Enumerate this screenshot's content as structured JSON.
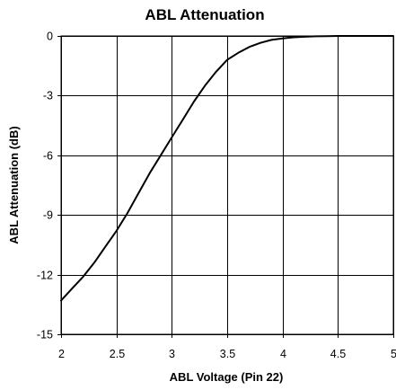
{
  "chart_data": {
    "type": "line",
    "title": "ABL Attenuation",
    "xlabel": "ABL Voltage (Pin 22)",
    "ylabel": "ABL Attenuation (dB)",
    "xlim": [
      2,
      5
    ],
    "ylim": [
      -15,
      0
    ],
    "xticks": [
      2,
      2.5,
      3,
      3.5,
      4,
      4.5,
      5
    ],
    "xtick_labels": [
      "2",
      "2.5",
      "3",
      "3.5",
      "4",
      "4.5",
      "5"
    ],
    "yticks": [
      0,
      -3,
      -6,
      -9,
      -12,
      -15
    ],
    "ytick_labels": [
      "0",
      "-3",
      "-6",
      "-9",
      "-12",
      "-15"
    ],
    "grid": true,
    "legend": "none",
    "series": [
      {
        "color": "#000000",
        "x": [
          2.0,
          2.1,
          2.2,
          2.3,
          2.4,
          2.5,
          2.6,
          2.7,
          2.8,
          2.9,
          3.0,
          3.1,
          3.2,
          3.3,
          3.4,
          3.5,
          3.6,
          3.7,
          3.8,
          3.9,
          4.0,
          4.1,
          4.2,
          4.3,
          4.4,
          4.5,
          4.6,
          4.7,
          4.8,
          4.9,
          5.0
        ],
        "y": [
          -13.3,
          -12.7,
          -12.1,
          -11.4,
          -10.6,
          -9.8,
          -8.9,
          -7.9,
          -6.9,
          -6.0,
          -5.1,
          -4.2,
          -3.3,
          -2.5,
          -1.8,
          -1.2,
          -0.85,
          -0.55,
          -0.35,
          -0.2,
          -0.12,
          -0.07,
          -0.04,
          -0.02,
          -0.01,
          0.0,
          0.0,
          0.0,
          0.0,
          0.0,
          0.0
        ]
      }
    ]
  }
}
